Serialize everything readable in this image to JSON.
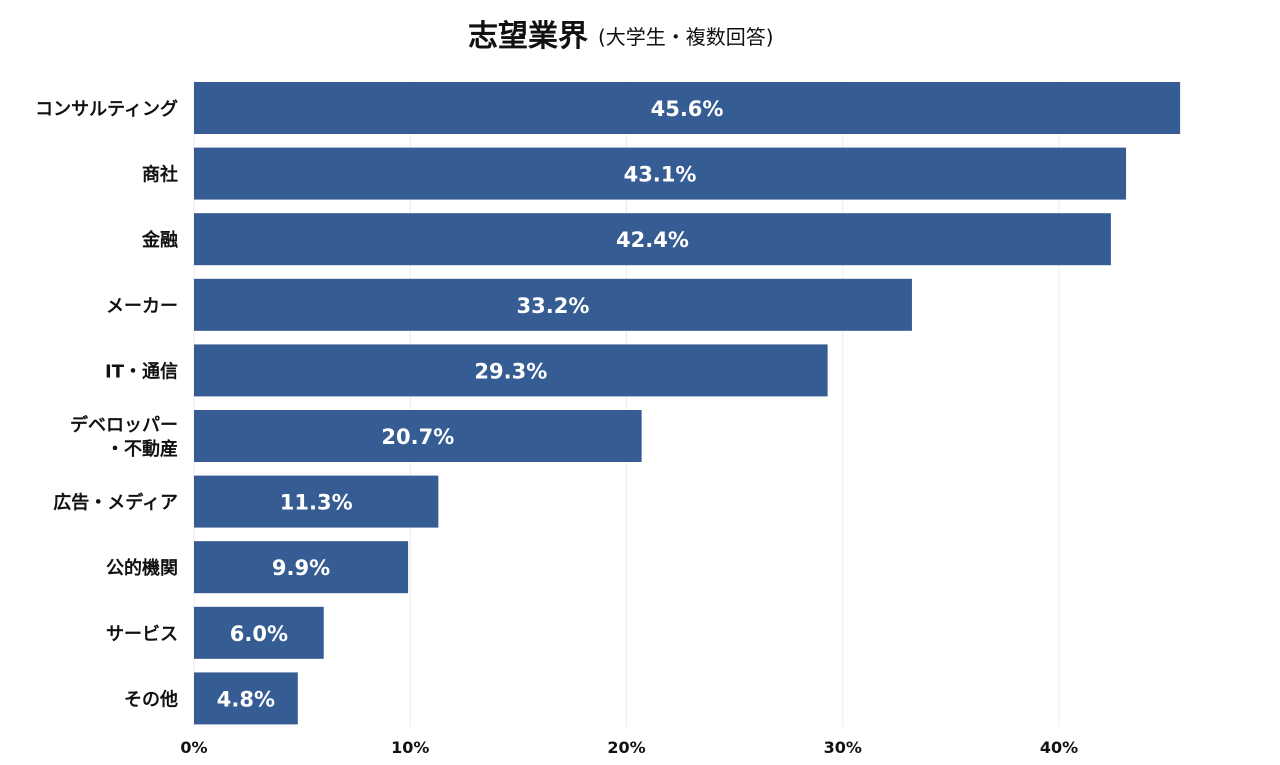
{
  "chart_data": {
    "type": "bar",
    "orientation": "horizontal",
    "title": "志望業界",
    "subtitle": "(大学生・複数回答)",
    "categories": [
      "コンサルティング",
      "商社",
      "金融",
      "メーカー",
      "IT・通信",
      "デベロッパー\n・不動産",
      "広告・メディア",
      "公的機関",
      "サービス",
      "その他"
    ],
    "values": [
      45.6,
      43.1,
      42.4,
      33.2,
      29.3,
      20.7,
      11.3,
      9.9,
      6.0,
      4.8
    ],
    "data_labels": [
      "45.6%",
      "43.1%",
      "42.4%",
      "33.2%",
      "29.3%",
      "20.7%",
      "11.3%",
      "9.9%",
      "6.0%",
      "4.8%"
    ],
    "xlim": [
      0,
      48
    ],
    "xticks": [
      0,
      10,
      20,
      30,
      40
    ],
    "xtick_labels": [
      "0%",
      "10%",
      "20%",
      "30%",
      "40%"
    ],
    "grid": true,
    "bar_color": "#365c94"
  }
}
